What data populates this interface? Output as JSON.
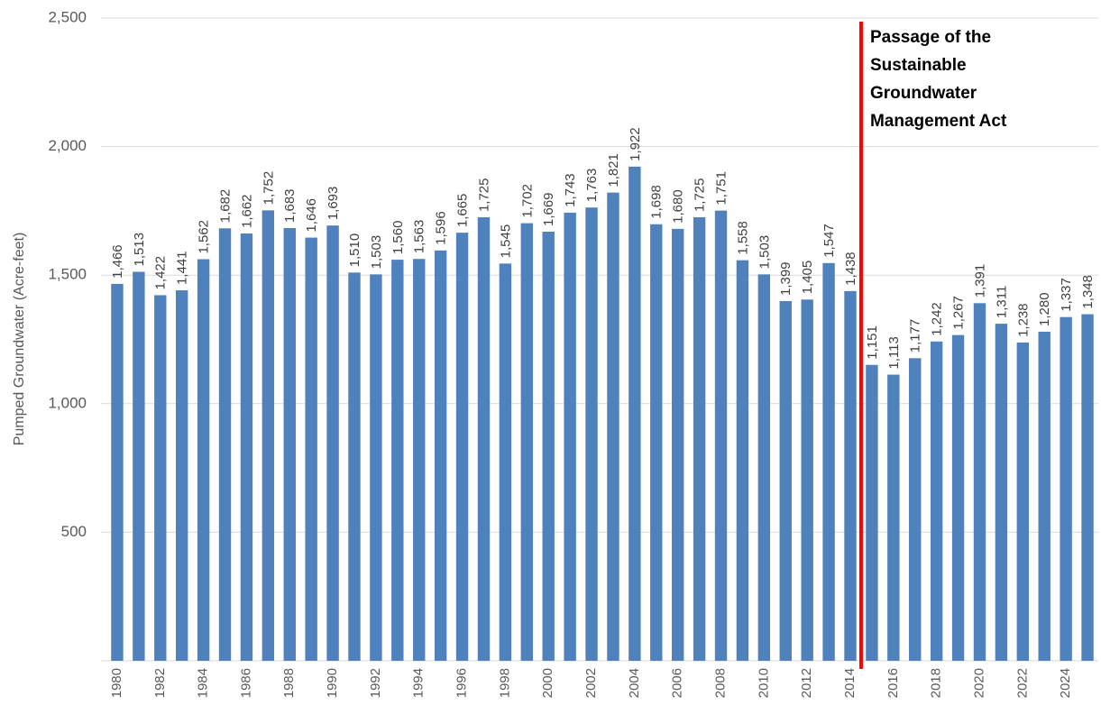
{
  "chart_data": {
    "type": "bar",
    "y_label": "Pumped Groundwater (Acre-feet)",
    "categories": [
      "1980",
      null,
      "1982",
      null,
      "1984",
      null,
      "1986",
      null,
      "1988",
      null,
      "1990",
      null,
      "1992",
      null,
      "1994",
      null,
      "1996",
      null,
      "1998",
      null,
      "2000",
      null,
      "2002",
      null,
      "2004",
      null,
      "2006",
      null,
      "2008",
      null,
      "2010",
      null,
      "2012",
      null,
      "2014",
      null,
      "2016",
      null,
      "2018",
      null,
      "2020",
      null,
      "2022",
      null,
      "2024",
      null
    ],
    "values": [
      1466,
      1513,
      1422,
      1441,
      1562,
      1682,
      1662,
      1752,
      1683,
      1646,
      1693,
      1510,
      1503,
      1560,
      1563,
      1596,
      1665,
      1725,
      1545,
      1702,
      1669,
      1743,
      1763,
      1821,
      1922,
      1698,
      1680,
      1725,
      1751,
      1558,
      1503,
      1399,
      1405,
      1547,
      1438,
      1151,
      1113,
      1177,
      1242,
      1267,
      1391,
      1311,
      1238,
      1280,
      1337,
      1348
    ],
    "value_labels": [
      "1,466",
      "1,513",
      "1,422",
      "1,441",
      "1,562",
      "1,682",
      "1,662",
      "1,752",
      "1,683",
      "1,646",
      "1,693",
      "1,510",
      "1,503",
      "1,560",
      "1,563",
      "1,596",
      "1,665",
      "1,725",
      "1,545",
      "1,702",
      "1,669",
      "1,743",
      "1,763",
      "1,821",
      "1,922",
      "1,698",
      "1,680",
      "1,725",
      "1,751",
      "1,558",
      "1,503",
      "1,399",
      "1,405",
      "1,547",
      "1,438",
      "1,151",
      "1,113",
      "1,177",
      "1,242",
      "1,267",
      "1,391",
      "1,311",
      "1,238",
      "1,280",
      "1,337",
      "1,348"
    ],
    "color": "#4f81bd",
    "ylim": [
      0,
      2500
    ],
    "yticks": [
      500,
      {
        "value": 1000,
        "label": "1,000"
      },
      {
        "value": 1500,
        "label": "1,500"
      },
      {
        "value": 2000,
        "label": "2,000"
      },
      {
        "value": 2500,
        "label": "2,500"
      }
    ],
    "grid": true,
    "annotation": {
      "lines": [
        "Passage of the",
        "Sustainable",
        "Groundwater",
        "Management Act"
      ],
      "after_category": "2014",
      "color": "#ff0000"
    }
  }
}
